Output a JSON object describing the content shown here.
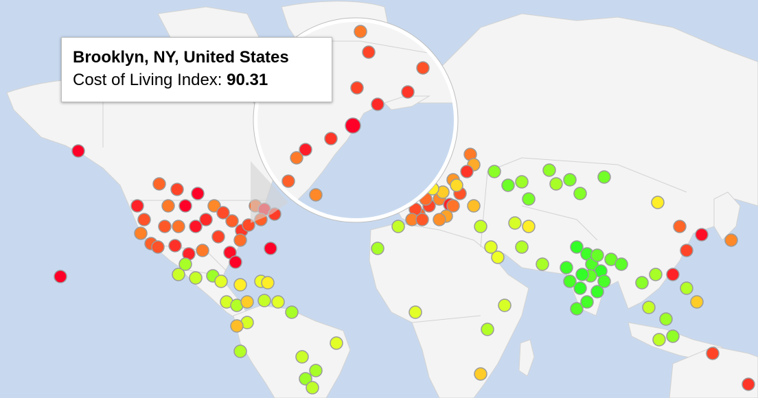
{
  "tooltip": {
    "city": "Brooklyn, NY, United States",
    "metric_label": "Cost of Living Index:",
    "metric_value": "90.31"
  },
  "colors": {
    "ocean": "#c8d9ef",
    "land": "#f4f4f4",
    "border": "#d2d2d2",
    "highlight_marker": "#ff0000",
    "color_scale_low": "#33ff33",
    "color_scale_mid": "#ffee33",
    "color_scale_high": "#ff0000"
  },
  "markers": {
    "alaska": [
      90
    ],
    "hawaii": [
      90
    ],
    "bermuda": [
      90
    ],
    "usa": [
      75,
      80,
      85,
      78,
      72,
      90,
      70,
      76,
      82,
      79,
      74,
      86,
      81,
      77,
      73,
      84,
      80,
      88,
      90,
      76,
      71,
      78,
      83,
      85,
      72,
      79,
      87,
      90,
      74,
      76
    ],
    "mexico_central": [
      40,
      45,
      38,
      50,
      55,
      48,
      42,
      60,
      52,
      46
    ],
    "caribbean": [
      45,
      50,
      55,
      48,
      62,
      40
    ],
    "south_america": [
      42,
      46,
      40,
      38,
      50,
      44
    ],
    "europe": [
      75,
      80,
      70,
      85,
      78,
      72,
      65,
      82,
      68,
      60,
      55,
      74,
      79,
      66,
      58,
      62,
      71,
      77,
      69,
      73
    ],
    "eastern_europe": [
      35,
      30,
      38,
      32,
      36,
      40,
      33,
      31,
      34
    ],
    "middle_east": [
      45,
      50,
      48,
      55,
      42,
      40,
      52
    ],
    "africa": [
      40,
      45,
      50,
      48,
      42,
      60
    ],
    "south_asia": [
      20,
      22,
      25,
      18,
      24,
      21,
      23,
      26,
      19,
      28,
      30,
      27,
      22,
      24,
      20,
      29
    ],
    "southeast_asia": [
      35,
      40,
      45,
      38,
      42,
      60,
      36,
      44
    ],
    "east_asia": [
      55,
      75,
      80,
      85,
      88,
      70
    ],
    "australia": [
      80,
      82
    ]
  },
  "magnifier_markers": [
    72,
    80,
    78,
    80,
    82,
    84,
    82,
    86,
    90,
    72,
    76,
    70
  ]
}
